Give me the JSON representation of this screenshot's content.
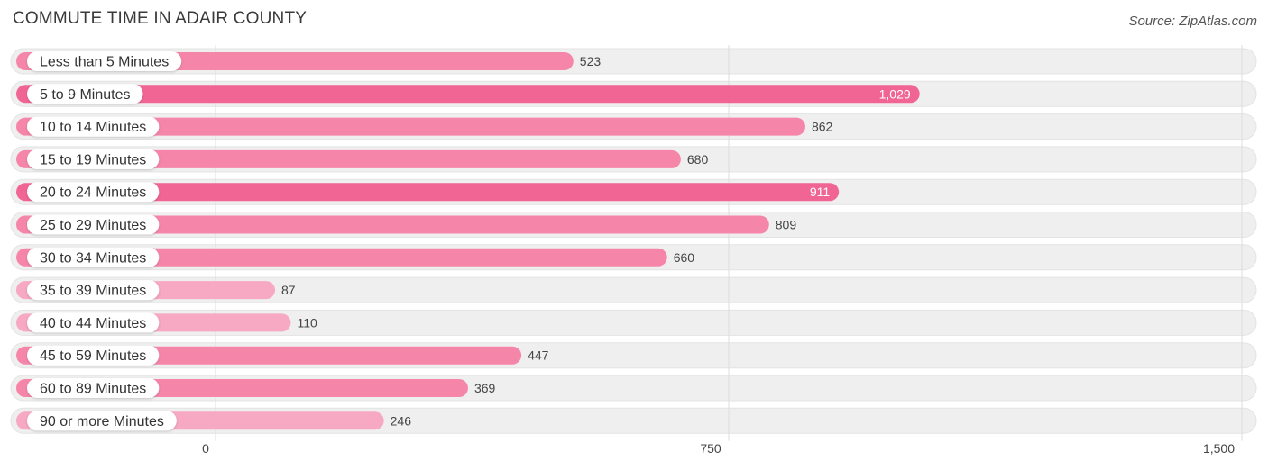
{
  "header": {
    "title": "COMMUTE TIME IN ADAIR COUNTY",
    "source": "Source: ZipAtlas.com"
  },
  "colors": {
    "bar_strong": "#f06593",
    "bar_medium": "#f586aa",
    "bar_light": "#f7a8c2",
    "track": "#efefef",
    "grid": "#dddddd"
  },
  "chart_data": {
    "type": "bar",
    "orientation": "horizontal",
    "categories": [
      "Less than 5 Minutes",
      "5 to 9 Minutes",
      "10 to 14 Minutes",
      "15 to 19 Minutes",
      "20 to 24 Minutes",
      "25 to 29 Minutes",
      "30 to 34 Minutes",
      "35 to 39 Minutes",
      "40 to 44 Minutes",
      "45 to 59 Minutes",
      "60 to 89 Minutes",
      "90 or more Minutes"
    ],
    "values": [
      523,
      1029,
      862,
      680,
      911,
      809,
      660,
      87,
      110,
      447,
      369,
      246
    ],
    "value_labels": [
      "523",
      "1,029",
      "862",
      "680",
      "911",
      "809",
      "660",
      "87",
      "110",
      "447",
      "369",
      "246"
    ],
    "xlim": [
      0,
      1500
    ],
    "ticks": [
      0,
      750,
      1500
    ],
    "tick_labels": [
      "0",
      "750",
      "1,500"
    ],
    "grid": true,
    "legend": "none"
  }
}
